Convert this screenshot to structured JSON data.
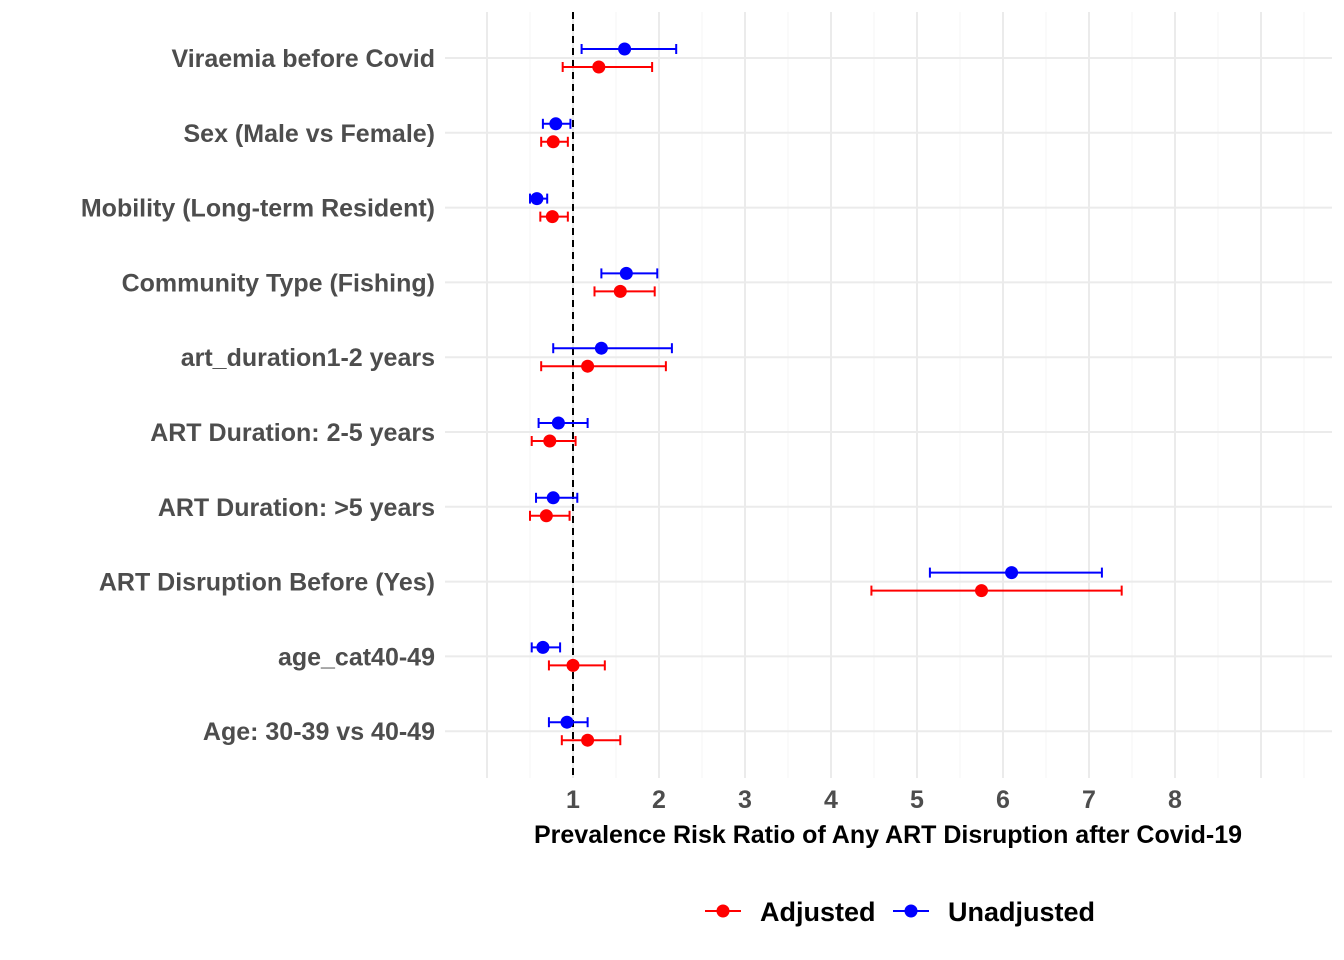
{
  "chart_data": {
    "type": "forest",
    "xlabel": "Prevalence Risk Ratio of Any ART Disruption after Covid-19",
    "x_ticks": [
      1,
      2,
      3,
      4,
      5,
      6,
      7,
      8
    ],
    "xlim": [
      0,
      9.8
    ],
    "reference_line": 1,
    "grid": true,
    "legend_position": "bottom",
    "categories": [
      "Viraemia before Covid",
      "Sex (Male vs Female)",
      "Mobility (Long-term Resident)",
      "Community Type (Fishing)",
      "art_duration1-2 years",
      "ART Duration: 2-5 years",
      "ART Duration: >5 years",
      "ART Disruption Before (Yes)",
      "age_cat40-49",
      "Age: 30-39 vs 40-49"
    ],
    "series": [
      {
        "name": "Unadjusted",
        "color": "#0000ff",
        "estimate": [
          1.6,
          0.8,
          0.58,
          1.62,
          1.33,
          0.83,
          0.77,
          6.1,
          0.65,
          0.93
        ],
        "lower": [
          1.1,
          0.65,
          0.5,
          1.33,
          0.77,
          0.6,
          0.57,
          5.15,
          0.52,
          0.72
        ],
        "upper": [
          2.2,
          0.97,
          0.7,
          1.98,
          2.15,
          1.17,
          1.05,
          7.15,
          0.85,
          1.17
        ]
      },
      {
        "name": "Adjusted",
        "color": "#ff0000",
        "estimate": [
          1.3,
          0.77,
          0.76,
          1.55,
          1.17,
          0.73,
          0.69,
          5.75,
          1.0,
          1.17
        ],
        "lower": [
          0.88,
          0.63,
          0.62,
          1.25,
          0.63,
          0.52,
          0.5,
          4.47,
          0.72,
          0.87
        ],
        "upper": [
          1.92,
          0.94,
          0.94,
          1.95,
          2.08,
          1.03,
          0.96,
          7.38,
          1.37,
          1.55
        ]
      }
    ],
    "legend": [
      {
        "label": "Adjusted",
        "color": "#ff0000"
      },
      {
        "label": "Unadjusted",
        "color": "#0000ff"
      }
    ]
  }
}
